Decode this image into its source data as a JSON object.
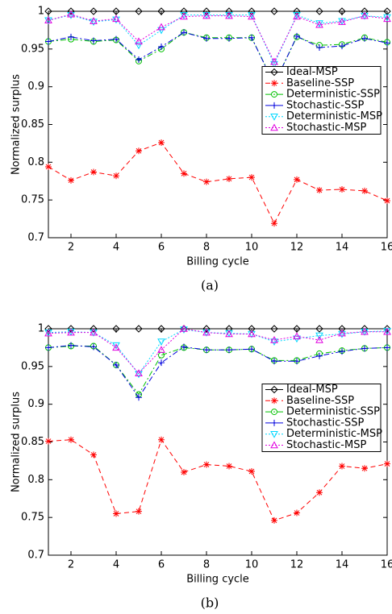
{
  "chart_data": [
    {
      "type": "line",
      "caption": "(a)",
      "xlabel": "Billing cycle",
      "ylabel": "Normalized surplus",
      "x": [
        1,
        2,
        3,
        4,
        5,
        6,
        7,
        8,
        9,
        10,
        11,
        12,
        13,
        14,
        15,
        16
      ],
      "xlim": [
        1,
        16
      ],
      "xticks": [
        2,
        4,
        6,
        8,
        10,
        12,
        14,
        16
      ],
      "ylim": [
        0.7,
        1
      ],
      "yticks": [
        0.7,
        0.75,
        0.8,
        0.85,
        0.9,
        0.95,
        1
      ],
      "legend": "right",
      "series": [
        {
          "name": "Ideal-MSP",
          "color": "#000000",
          "marker": "diamond",
          "dash": "solid",
          "values": [
            1,
            1,
            1,
            1,
            1,
            1,
            1,
            1,
            1,
            1,
            1,
            1,
            1,
            1,
            1,
            1
          ]
        },
        {
          "name": "Baseline-SSP",
          "color": "#ff0000",
          "marker": "asterisk",
          "dash": "dashed",
          "values": [
            0.794,
            0.776,
            0.787,
            0.782,
            0.815,
            0.826,
            0.785,
            0.774,
            0.778,
            0.78,
            0.719,
            0.777,
            0.763,
            0.764,
            0.762,
            0.749
          ]
        },
        {
          "name": "Deterministic-SSP",
          "color": "#00c000",
          "marker": "circle",
          "dash": "dashdot",
          "values": [
            0.96,
            0.963,
            0.96,
            0.962,
            0.934,
            0.95,
            0.972,
            0.965,
            0.965,
            0.965,
            0.904,
            0.966,
            0.955,
            0.956,
            0.965,
            0.959
          ]
        },
        {
          "name": "Stochastic-SSP",
          "color": "#0000dd",
          "marker": "plus",
          "dash": "dashdot",
          "values": [
            0.96,
            0.966,
            0.961,
            0.963,
            0.936,
            0.953,
            0.972,
            0.964,
            0.964,
            0.965,
            0.903,
            0.967,
            0.952,
            0.954,
            0.964,
            0.958
          ]
        },
        {
          "name": "Deterministic-MSP",
          "color": "#00d8ff",
          "marker": "triangle-down",
          "dash": "dotted",
          "values": [
            0.988,
            0.995,
            0.986,
            0.989,
            0.955,
            0.975,
            0.995,
            0.995,
            0.995,
            0.995,
            0.93,
            0.995,
            0.984,
            0.987,
            0.994,
            0.992
          ]
        },
        {
          "name": "Stochastic-MSP",
          "color": "#e000e0",
          "marker": "triangle-up",
          "dash": "dotted",
          "values": [
            0.988,
            0.996,
            0.987,
            0.99,
            0.96,
            0.979,
            0.993,
            0.994,
            0.994,
            0.993,
            0.933,
            0.993,
            0.982,
            0.986,
            0.994,
            0.99
          ]
        }
      ]
    },
    {
      "type": "line",
      "caption": "(b)",
      "xlabel": "Billing cycle",
      "ylabel": "Normalized surplus",
      "x": [
        1,
        2,
        3,
        4,
        5,
        6,
        7,
        8,
        9,
        10,
        11,
        12,
        13,
        14,
        15,
        16
      ],
      "xlim": [
        1,
        16
      ],
      "xticks": [
        2,
        4,
        6,
        8,
        10,
        12,
        14,
        16
      ],
      "ylim": [
        0.7,
        1
      ],
      "yticks": [
        0.7,
        0.75,
        0.8,
        0.85,
        0.9,
        0.95,
        1
      ],
      "legend": "right",
      "series": [
        {
          "name": "Ideal-MSP",
          "color": "#000000",
          "marker": "diamond",
          "dash": "solid",
          "values": [
            1,
            1,
            1,
            1,
            1,
            1,
            1,
            1,
            1,
            1,
            1,
            1,
            1,
            1,
            1,
            1
          ]
        },
        {
          "name": "Baseline-SSP",
          "color": "#ff0000",
          "marker": "asterisk",
          "dash": "dashed",
          "values": [
            0.851,
            0.853,
            0.833,
            0.755,
            0.758,
            0.853,
            0.81,
            0.82,
            0.818,
            0.811,
            0.746,
            0.756,
            0.783,
            0.818,
            0.815,
            0.821
          ]
        },
        {
          "name": "Deterministic-SSP",
          "color": "#00c000",
          "marker": "circle",
          "dash": "dashdot",
          "values": [
            0.975,
            0.977,
            0.977,
            0.952,
            0.913,
            0.965,
            0.975,
            0.972,
            0.972,
            0.973,
            0.958,
            0.958,
            0.967,
            0.971,
            0.974,
            0.975
          ]
        },
        {
          "name": "Stochastic-SSP",
          "color": "#0000dd",
          "marker": "plus",
          "dash": "dashdot",
          "values": [
            0.975,
            0.978,
            0.976,
            0.952,
            0.909,
            0.955,
            0.976,
            0.972,
            0.972,
            0.973,
            0.957,
            0.957,
            0.964,
            0.97,
            0.974,
            0.975
          ]
        },
        {
          "name": "Deterministic-MSP",
          "color": "#00d8ff",
          "marker": "triangle-down",
          "dash": "dotted",
          "values": [
            0.995,
            0.996,
            0.995,
            0.978,
            0.94,
            0.983,
            0.999,
            0.995,
            0.994,
            0.993,
            0.983,
            0.987,
            0.991,
            0.993,
            0.996,
            0.997
          ]
        },
        {
          "name": "Stochastic-MSP",
          "color": "#e000e0",
          "marker": "triangle-up",
          "dash": "dotted",
          "values": [
            0.994,
            0.995,
            0.995,
            0.975,
            0.941,
            0.972,
            1.0,
            0.995,
            0.993,
            0.993,
            0.985,
            0.99,
            0.985,
            0.994,
            0.996,
            0.996
          ]
        }
      ]
    }
  ]
}
